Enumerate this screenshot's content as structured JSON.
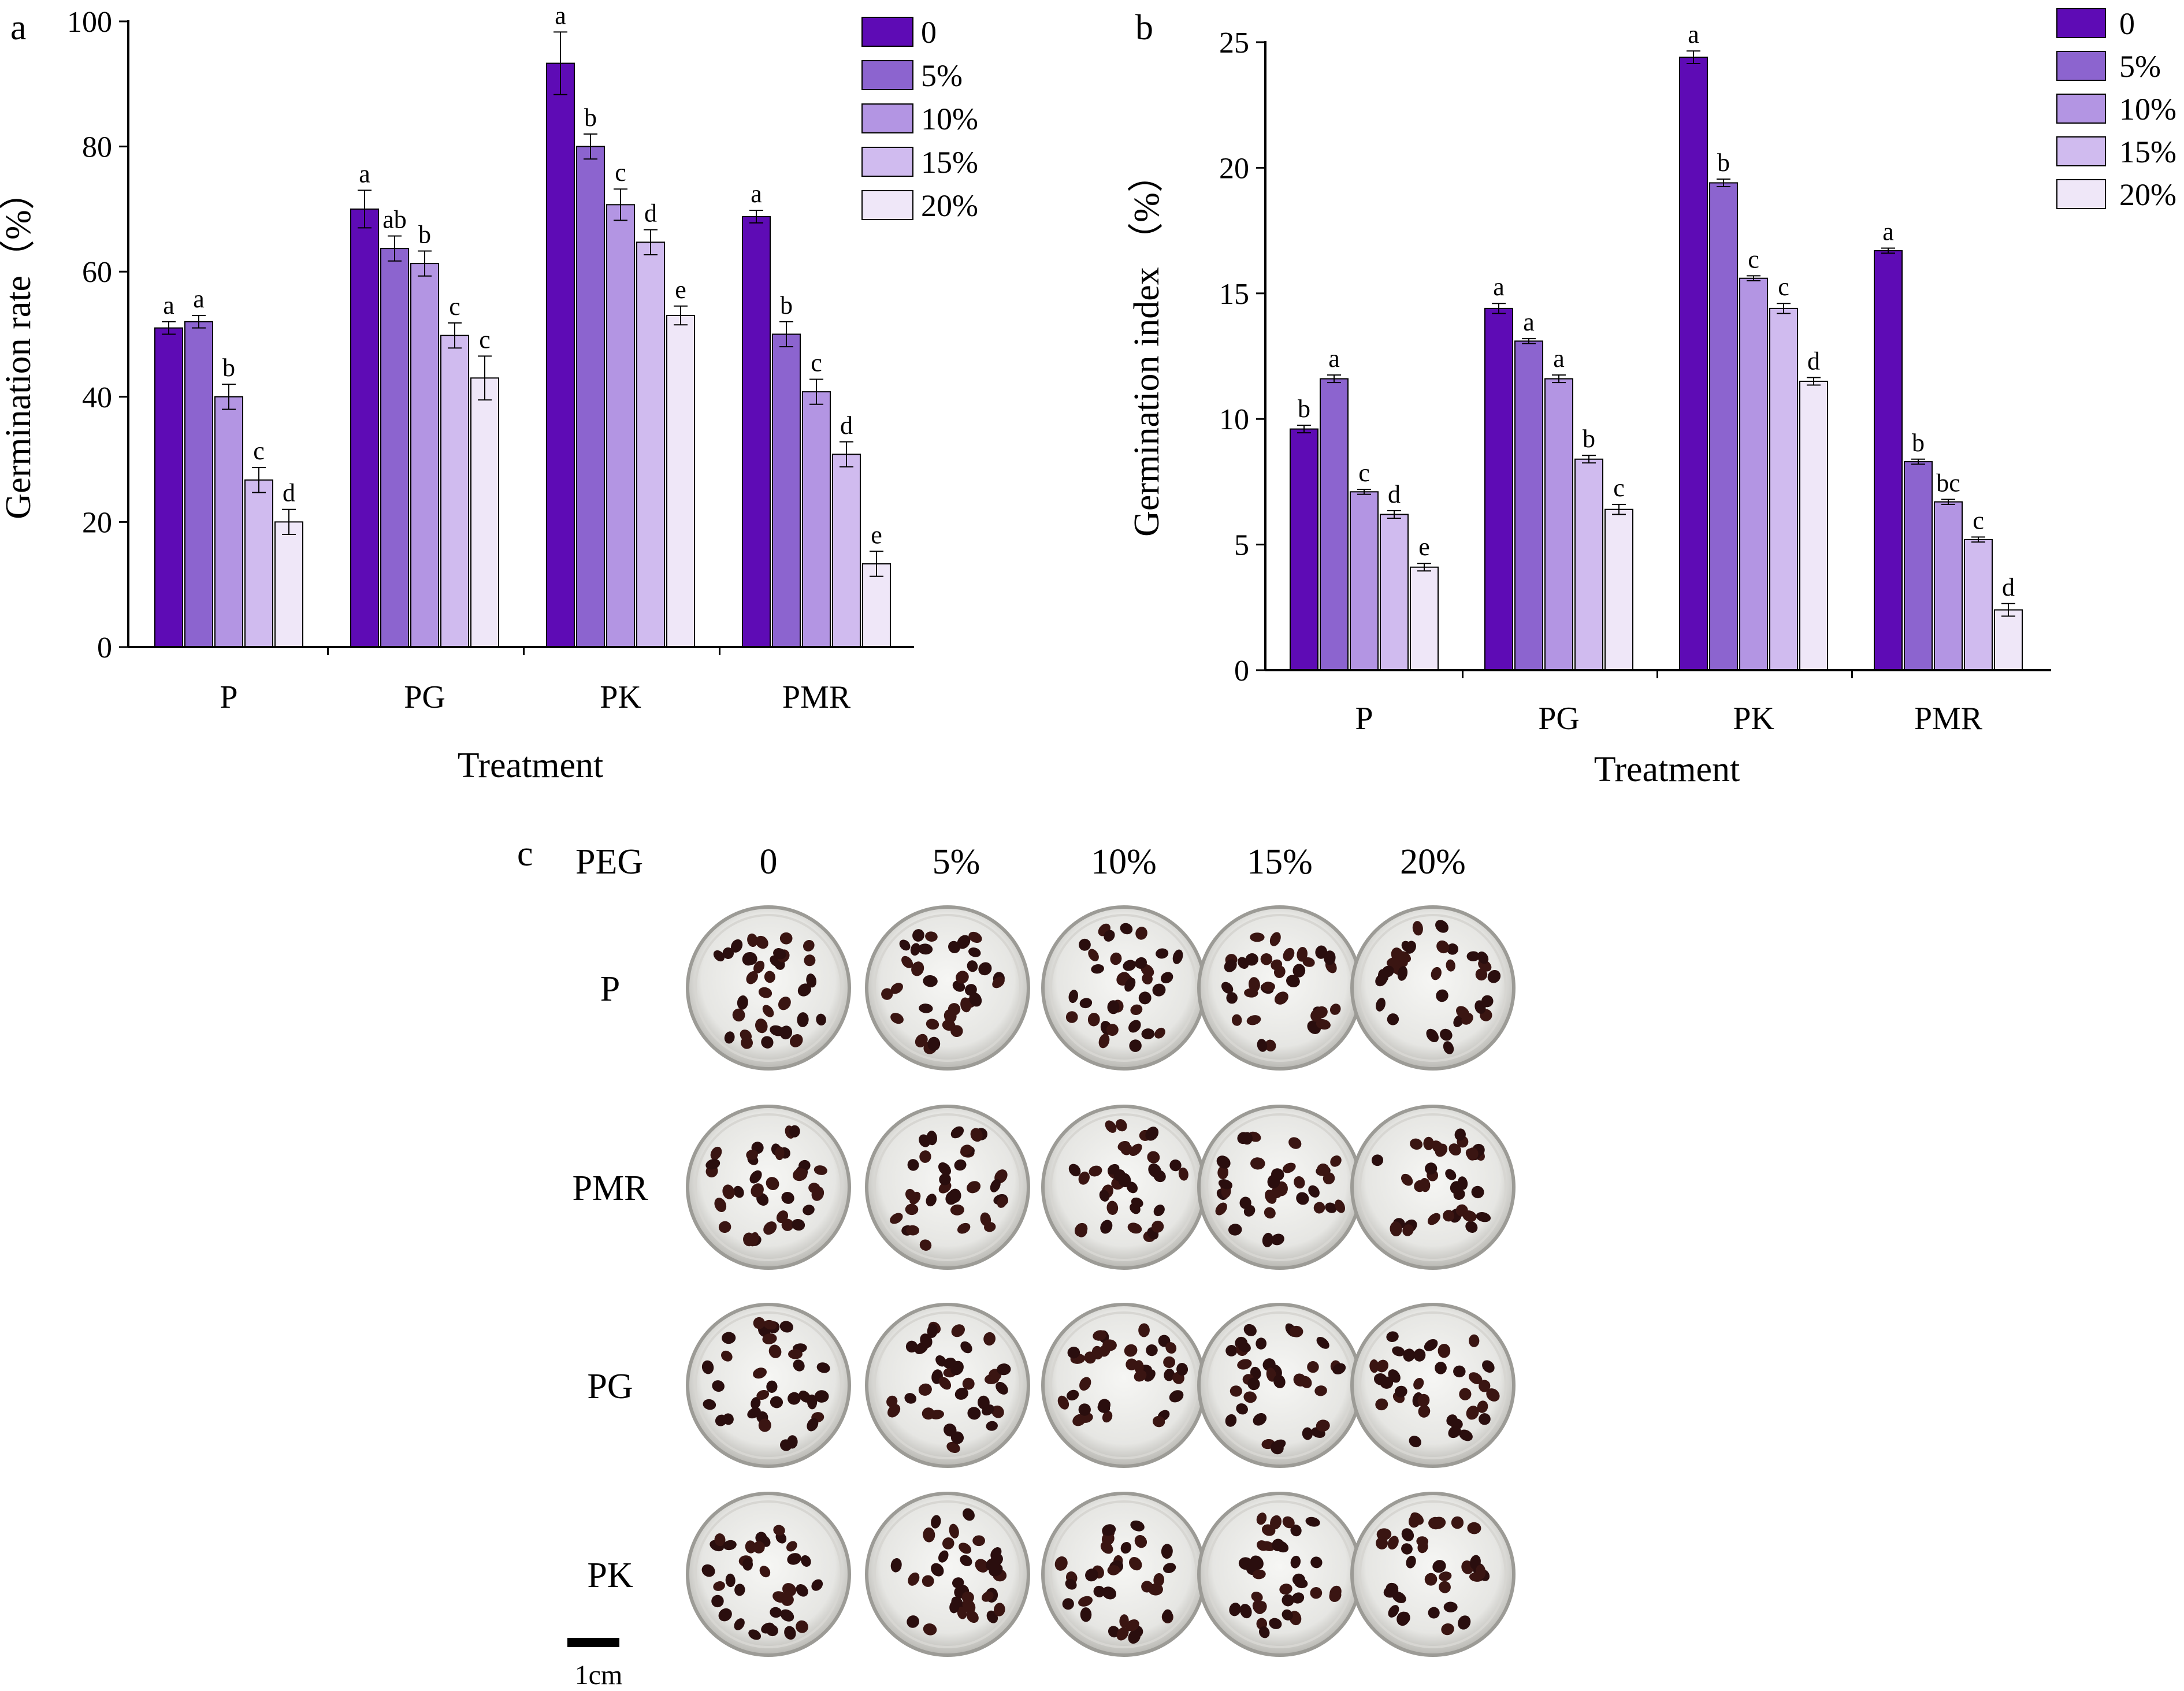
{
  "colors": {
    "c0": "#5e0bb5",
    "c5": "#8c64cf",
    "c10": "#b395e3",
    "c15": "#d0bbef",
    "c20": "#efe7f8",
    "axis": "#000000"
  },
  "chart_data": [
    {
      "panel": "a",
      "type": "bar",
      "xlabel": "Treatment",
      "ylabel": "Germination rate（%）",
      "ylim": [
        0,
        100
      ],
      "yticks": [
        "0",
        "20",
        "40",
        "60",
        "80",
        "100"
      ],
      "categories": [
        "P",
        "PG",
        "PK",
        "PMR"
      ],
      "legend": [
        "0",
        "5%",
        "10%",
        "15%",
        "20%"
      ],
      "legend_position": "top-right",
      "series": [
        {
          "name": "0",
          "values": [
            51.0,
            70.0,
            93.3,
            68.8
          ],
          "errors": [
            1.0,
            3.0,
            5.0,
            1.0
          ],
          "letters": [
            "a",
            "a",
            "a",
            "a"
          ]
        },
        {
          "name": "5%",
          "values": [
            52.0,
            63.7,
            80.0,
            50.0
          ],
          "errors": [
            1.0,
            2.0,
            2.0,
            2.0
          ],
          "letters": [
            "a",
            "ab",
            "b",
            "b"
          ]
        },
        {
          "name": "10%",
          "values": [
            40.0,
            61.3,
            70.7,
            40.8
          ],
          "errors": [
            2.0,
            2.0,
            2.5,
            2.0
          ],
          "letters": [
            "b",
            "b",
            "c",
            "c"
          ]
        },
        {
          "name": "15%",
          "values": [
            26.7,
            49.8,
            64.7,
            30.8
          ],
          "errors": [
            2.0,
            2.0,
            2.0,
            2.0
          ],
          "letters": [
            "c",
            "c",
            "d",
            "d"
          ]
        },
        {
          "name": "20%",
          "values": [
            20.0,
            43.0,
            53.0,
            13.3
          ],
          "errors": [
            2.0,
            3.5,
            1.5,
            2.0
          ],
          "letters": [
            "d",
            "c",
            "e",
            "e"
          ]
        }
      ]
    },
    {
      "panel": "b",
      "type": "bar",
      "xlabel": "Treatment",
      "ylabel": "Germination index （%）",
      "ylim": [
        0,
        25
      ],
      "yticks": [
        "0",
        "5",
        "10",
        "15",
        "20",
        "25"
      ],
      "categories": [
        "P",
        "PG",
        "PK",
        "PMR"
      ],
      "legend": [
        "0",
        "5%",
        "10%",
        "15%",
        "20%"
      ],
      "legend_position": "top-right",
      "series": [
        {
          "name": "0",
          "values": [
            9.6,
            14.4,
            24.4,
            16.7
          ],
          "errors": [
            0.15,
            0.2,
            0.25,
            0.1
          ],
          "letters": [
            "b",
            "a",
            "a",
            "a"
          ]
        },
        {
          "name": "5%",
          "values": [
            11.6,
            13.1,
            19.4,
            8.3
          ],
          "errors": [
            0.15,
            0.1,
            0.15,
            0.1
          ],
          "letters": [
            "a",
            "a",
            "b",
            "b"
          ]
        },
        {
          "name": "10%",
          "values": [
            7.1,
            11.6,
            15.6,
            6.7
          ],
          "errors": [
            0.1,
            0.15,
            0.1,
            0.1
          ],
          "letters": [
            "c",
            "a",
            "c",
            "bc"
          ]
        },
        {
          "name": "15%",
          "values": [
            6.2,
            8.4,
            14.4,
            5.2
          ],
          "errors": [
            0.15,
            0.15,
            0.2,
            0.1
          ],
          "letters": [
            "d",
            "b",
            "c",
            "c"
          ]
        },
        {
          "name": "20%",
          "values": [
            4.1,
            6.4,
            11.5,
            2.4
          ],
          "errors": [
            0.15,
            0.2,
            0.15,
            0.25
          ],
          "letters": [
            "e",
            "c",
            "d",
            "d"
          ]
        }
      ]
    }
  ],
  "photo_panel": {
    "panel": "c",
    "peg_label": "PEG",
    "columns": [
      "0",
      "5%",
      "10%",
      "15%",
      "20%"
    ],
    "rows": [
      "P",
      "PMR",
      "PG",
      "PK"
    ],
    "scale_label": "1cm"
  }
}
